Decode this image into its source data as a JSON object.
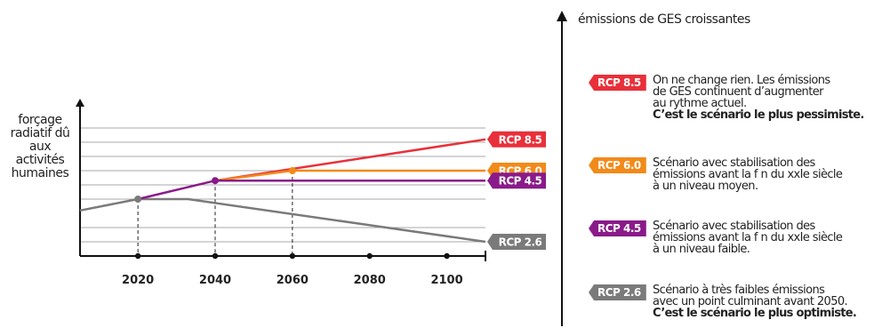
{
  "chart_data": {
    "type": "line",
    "x_ticks": [
      2020,
      2040,
      2060,
      2080,
      2100
    ],
    "x_range": [
      2005,
      2110
    ],
    "y_range": [
      0,
      10
    ],
    "grid_levels": [
      1,
      2,
      4,
      5,
      6,
      7,
      8,
      9
    ],
    "ylabel_lines": [
      "forçage",
      "radiatif dû",
      "aux",
      "activités",
      "humaines"
    ],
    "history": {
      "color": "#7a7a7a",
      "points": [
        [
          2005,
          3.2
        ],
        [
          2020,
          4.0
        ]
      ]
    },
    "series": [
      {
        "name": "RCP 8.5",
        "color": "#e8303a",
        "points": [
          [
            2040,
            5.3
          ],
          [
            2110,
            8.2
          ]
        ]
      },
      {
        "name": "RCP 6.0",
        "color": "#f28a1a",
        "points": [
          [
            2040,
            5.3
          ],
          [
            2060,
            6.0
          ],
          [
            2110,
            6.0
          ]
        ]
      },
      {
        "name": "RCP 4.5",
        "color": "#8a1a8a",
        "points": [
          [
            2020,
            4.0
          ],
          [
            2040,
            5.3
          ],
          [
            2110,
            5.3
          ]
        ]
      },
      {
        "name": "RCP 2.6",
        "color": "#7a7a7a",
        "points": [
          [
            2020,
            4.0
          ],
          [
            2033,
            4.0
          ],
          [
            2110,
            1.0
          ]
        ]
      }
    ],
    "dots": [
      {
        "x": 2020,
        "y": 4.0,
        "color": "#7a7a7a"
      },
      {
        "x": 2040,
        "y": 5.3,
        "color": "#8a1a8a"
      },
      {
        "x": 2060,
        "y": 6.0,
        "color": "#f28a1a"
      }
    ],
    "end_labels": [
      {
        "text": "RCP 8.5",
        "y": 8.2,
        "color": "#e8303a"
      },
      {
        "text": "RCP 6.0",
        "y": 6.0,
        "color": "#f28a1a"
      },
      {
        "text": "RCP 4.5",
        "y": 5.3,
        "color": "#8a1a8a"
      },
      {
        "text": "RCP 2.6",
        "y": 1.0,
        "color": "#7a7a7a"
      }
    ]
  },
  "right_panel": {
    "axis_title": "émissions de GES croissantes",
    "legend": [
      {
        "badge": "RCP 8.5",
        "color": "#e8303a",
        "lines": [
          "On ne change rien. Les émissions",
          "de GES continuent d’augmenter",
          "au rythme actuel."
        ],
        "bold": "C’est le scénario le plus pessimiste."
      },
      {
        "badge": "RCP 6.0",
        "color": "#f28a1a",
        "lines": [
          "Scénario avec stabilisation des",
          "émissions avant la f n du xxIe siècle",
          "à un niveau moyen."
        ],
        "bold": ""
      },
      {
        "badge": "RCP 4.5",
        "color": "#8a1a8a",
        "lines": [
          "Scénario avec stabilisation des",
          "émissions avant la f n du xxIe siècle",
          "à un niveau faible."
        ],
        "bold": ""
      },
      {
        "badge": "RCP 2.6",
        "color": "#7a7a7a",
        "lines": [
          "Scénario à très faibles émissions",
          "avec un point culminant avant 2050."
        ],
        "bold": "C’est le scénario le plus optimiste."
      }
    ]
  }
}
